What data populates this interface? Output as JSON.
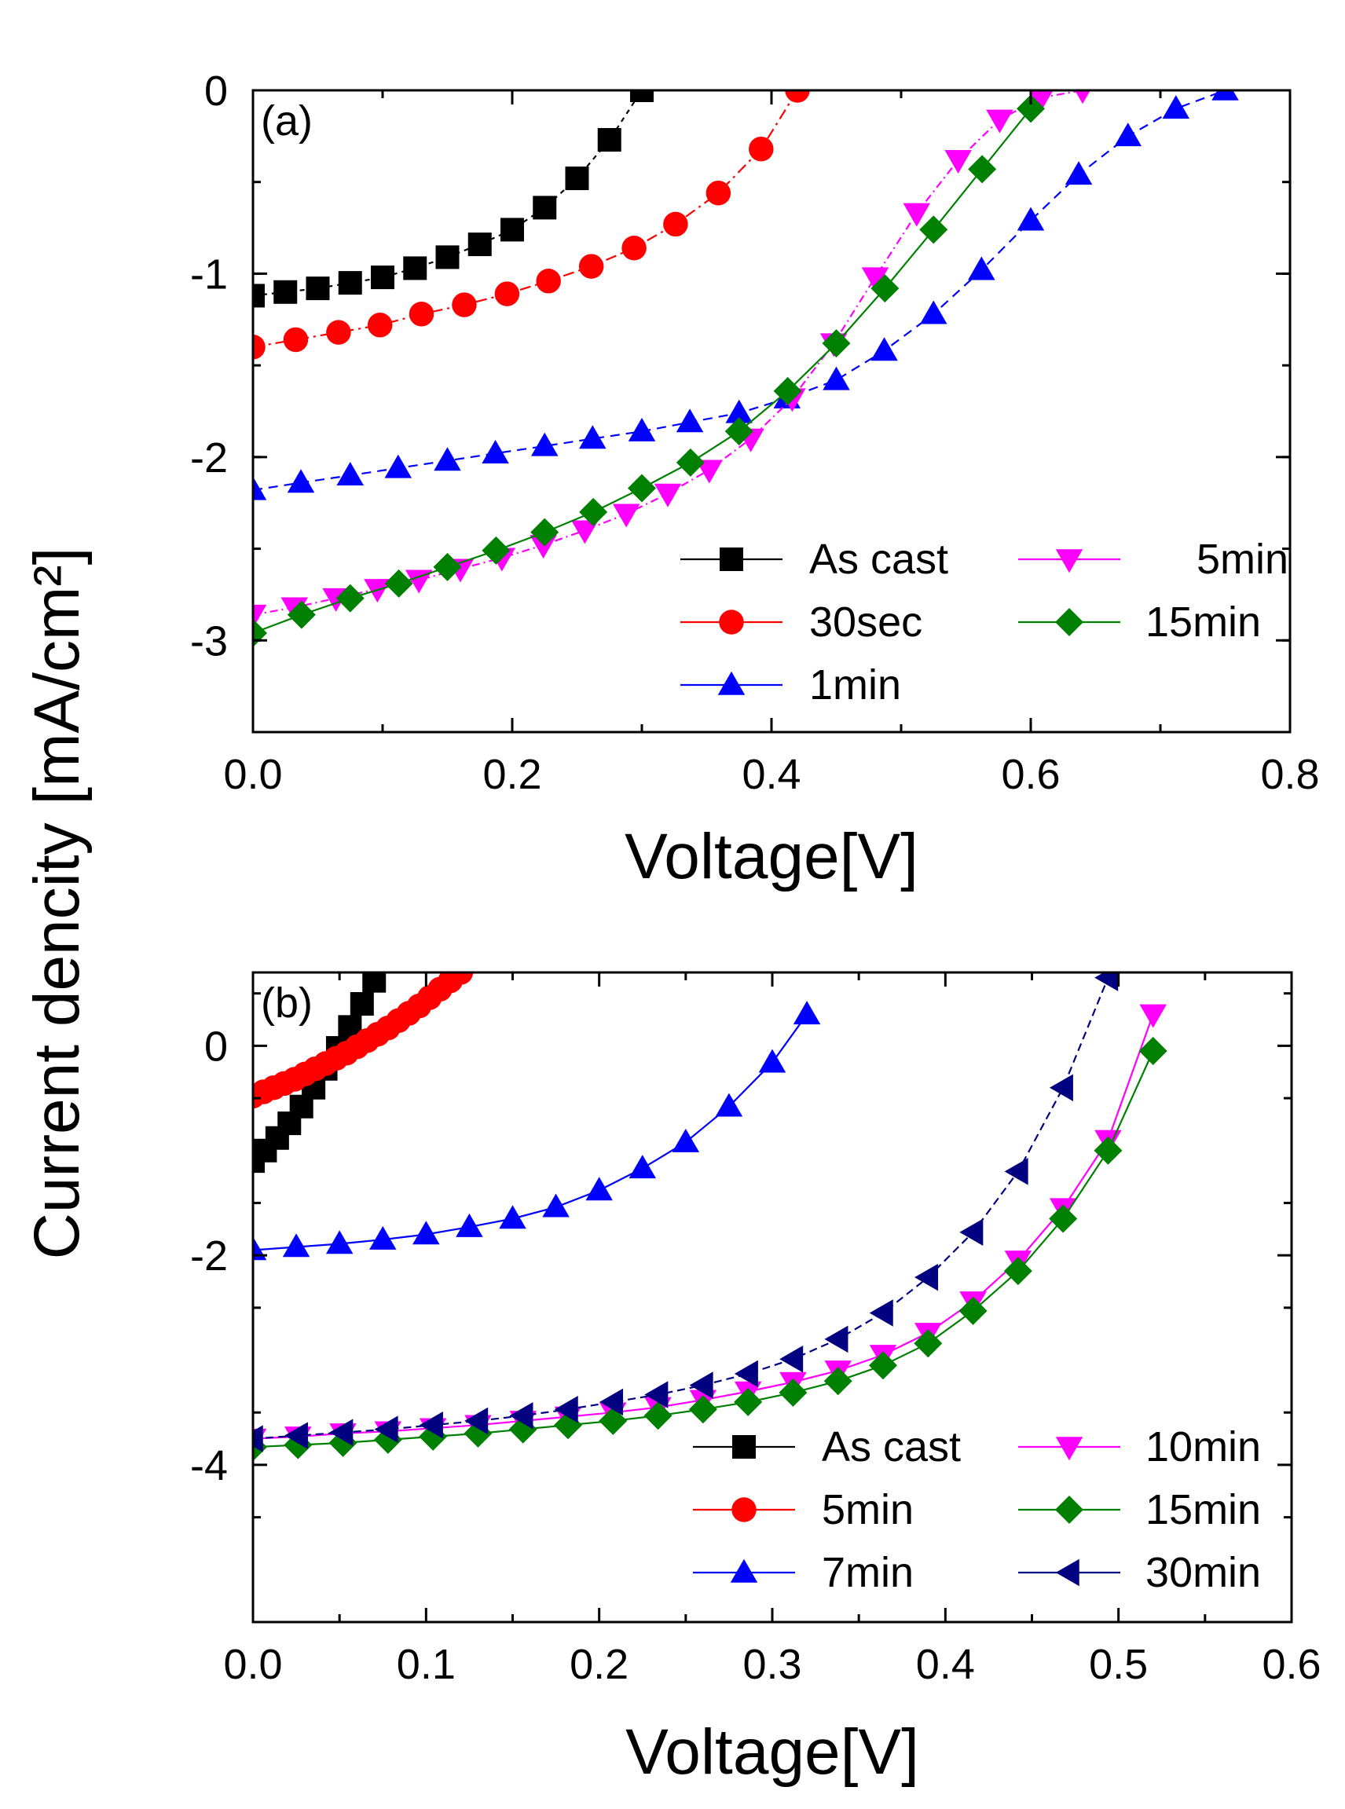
{
  "ylabel_shared": "Current dencity [mA/cm²]",
  "chart_data": [
    {
      "type": "line",
      "panel_label": "(a)",
      "xlabel": "Voltage[V]",
      "ylabel": "Current dencity [mA/cm²]",
      "xlim": [
        0.0,
        0.8
      ],
      "ylim": [
        -3.5,
        0
      ],
      "xticks": [
        "0.0",
        "0.2",
        "0.4",
        "0.6",
        "0.8"
      ],
      "yticks": [
        "0",
        "-1",
        "-2",
        "-3"
      ],
      "legend_position": "bottom-right",
      "series": [
        {
          "name": "As cast",
          "color": "#000000",
          "marker": "square",
          "dash": "6,6",
          "x": [
            0.0,
            0.025,
            0.05,
            0.075,
            0.1,
            0.125,
            0.15,
            0.175,
            0.2,
            0.225,
            0.25,
            0.275,
            0.3
          ],
          "y": [
            -1.12,
            -1.1,
            -1.08,
            -1.05,
            -1.02,
            -0.97,
            -0.91,
            -0.84,
            -0.76,
            -0.64,
            -0.48,
            -0.27,
            0.0
          ]
        },
        {
          "name": "30sec",
          "color": "#ff0000",
          "marker": "circle",
          "dash": "14,6,3,6",
          "x": [
            0.0,
            0.033,
            0.066,
            0.098,
            0.13,
            0.163,
            0.196,
            0.228,
            0.261,
            0.294,
            0.326,
            0.359,
            0.392,
            0.42
          ],
          "y": [
            -1.4,
            -1.36,
            -1.32,
            -1.28,
            -1.22,
            -1.17,
            -1.11,
            -1.04,
            -0.96,
            -0.86,
            -0.73,
            -0.56,
            -0.32,
            0.0
          ]
        },
        {
          "name": "1min",
          "color": "#0000ff",
          "marker": "triangle-up",
          "dash": "12,8",
          "x": [
            0.0,
            0.037,
            0.075,
            0.112,
            0.15,
            0.187,
            0.225,
            0.262,
            0.3,
            0.337,
            0.375,
            0.412,
            0.45,
            0.487,
            0.525,
            0.562,
            0.6,
            0.637,
            0.675,
            0.712,
            0.75
          ],
          "y": [
            -2.18,
            -2.14,
            -2.1,
            -2.06,
            -2.02,
            -1.98,
            -1.94,
            -1.9,
            -1.86,
            -1.81,
            -1.76,
            -1.68,
            -1.58,
            -1.42,
            -1.22,
            -0.98,
            -0.71,
            -0.46,
            -0.25,
            -0.1,
            0.0
          ]
        },
        {
          "name": "5min",
          "color": "#ff00ff",
          "marker": "triangle-down",
          "dash": "10,5,2,5",
          "x": [
            0.0,
            0.032,
            0.064,
            0.096,
            0.128,
            0.16,
            0.192,
            0.224,
            0.256,
            0.288,
            0.32,
            0.352,
            0.384,
            0.416,
            0.448,
            0.48,
            0.512,
            0.544,
            0.576,
            0.608,
            0.64
          ],
          "y": [
            -2.86,
            -2.82,
            -2.77,
            -2.72,
            -2.67,
            -2.61,
            -2.55,
            -2.48,
            -2.4,
            -2.31,
            -2.2,
            -2.07,
            -1.9,
            -1.68,
            -1.38,
            -1.02,
            -0.67,
            -0.38,
            -0.16,
            -0.04,
            0.0
          ]
        },
        {
          "name": "15min",
          "color": "#008000",
          "marker": "diamond",
          "dash": "",
          "x": [
            0.0,
            0.0375,
            0.075,
            0.1125,
            0.15,
            0.1875,
            0.225,
            0.2625,
            0.3,
            0.3375,
            0.375,
            0.4125,
            0.45,
            0.4875,
            0.525,
            0.5625,
            0.6
          ],
          "y": [
            -2.96,
            -2.86,
            -2.77,
            -2.69,
            -2.6,
            -2.51,
            -2.41,
            -2.3,
            -2.17,
            -2.03,
            -1.86,
            -1.64,
            -1.38,
            -1.08,
            -0.76,
            -0.43,
            -0.1
          ]
        }
      ]
    },
    {
      "type": "line",
      "panel_label": "(b)",
      "xlabel": "Voltage[V]",
      "ylabel": "Current dencity [mA/cm²]",
      "xlim": [
        0.0,
        0.6
      ],
      "ylim": [
        -5.5,
        0.7
      ],
      "xticks": [
        "0.0",
        "0.1",
        "0.2",
        "0.3",
        "0.4",
        "0.5",
        "0.6"
      ],
      "yticks": [
        "0",
        "-2",
        "-4"
      ],
      "legend_position": "bottom-right",
      "series": [
        {
          "name": "As cast",
          "color": "#000000",
          "marker": "square",
          "dash": "",
          "x": [
            0.0,
            0.007,
            0.014,
            0.021,
            0.028,
            0.035,
            0.042,
            0.049,
            0.056,
            0.063,
            0.07
          ],
          "y": [
            -1.1,
            -1.0,
            -0.88,
            -0.74,
            -0.58,
            -0.4,
            -0.22,
            -0.02,
            0.18,
            0.4,
            0.62
          ]
        },
        {
          "name": "5min",
          "color": "#ff0000",
          "marker": "circle",
          "dash": "",
          "x": [
            0.0,
            0.006,
            0.012,
            0.018,
            0.024,
            0.03,
            0.036,
            0.042,
            0.048,
            0.054,
            0.06,
            0.066,
            0.072,
            0.078,
            0.084,
            0.09,
            0.096,
            0.102,
            0.108,
            0.114,
            0.12
          ],
          "y": [
            -0.48,
            -0.44,
            -0.4,
            -0.36,
            -0.32,
            -0.27,
            -0.22,
            -0.17,
            -0.12,
            -0.07,
            -0.01,
            0.05,
            0.11,
            0.17,
            0.24,
            0.31,
            0.38,
            0.46,
            0.54,
            0.62,
            0.7
          ]
        },
        {
          "name": "7min",
          "color": "#0000ff",
          "marker": "triangle-up",
          "dash": "",
          "x": [
            0.0,
            0.025,
            0.05,
            0.075,
            0.1,
            0.125,
            0.15,
            0.175,
            0.2,
            0.225,
            0.25,
            0.275,
            0.3,
            0.32
          ],
          "y": [
            -1.95,
            -1.92,
            -1.89,
            -1.85,
            -1.8,
            -1.73,
            -1.65,
            -1.54,
            -1.38,
            -1.17,
            -0.92,
            -0.58,
            -0.16,
            0.3
          ]
        },
        {
          "name": "10min",
          "color": "#ff00ff",
          "marker": "triangle-down",
          "dash": "",
          "x": [
            0.0,
            0.026,
            0.052,
            0.078,
            0.104,
            0.13,
            0.156,
            0.182,
            0.208,
            0.234,
            0.26,
            0.286,
            0.312,
            0.338,
            0.364,
            0.39,
            0.416,
            0.442,
            0.468,
            0.494,
            0.52
          ],
          "y": [
            -3.75,
            -3.73,
            -3.7,
            -3.68,
            -3.65,
            -3.62,
            -3.58,
            -3.54,
            -3.5,
            -3.45,
            -3.38,
            -3.3,
            -3.21,
            -3.1,
            -2.95,
            -2.74,
            -2.44,
            -2.05,
            -1.55,
            -0.9,
            0.3
          ]
        },
        {
          "name": "15min",
          "color": "#008000",
          "marker": "diamond",
          "dash": "",
          "x": [
            0.0,
            0.026,
            0.052,
            0.078,
            0.104,
            0.13,
            0.156,
            0.182,
            0.208,
            0.234,
            0.26,
            0.286,
            0.312,
            0.338,
            0.364,
            0.39,
            0.416,
            0.442,
            0.468,
            0.494,
            0.52
          ],
          "y": [
            -3.83,
            -3.81,
            -3.79,
            -3.76,
            -3.73,
            -3.7,
            -3.66,
            -3.62,
            -3.58,
            -3.53,
            -3.47,
            -3.4,
            -3.31,
            -3.2,
            -3.05,
            -2.84,
            -2.53,
            -2.15,
            -1.65,
            -1.0,
            -0.05
          ]
        },
        {
          "name": "30min",
          "color": "#000080",
          "marker": "triangle-left",
          "dash": "10,6",
          "x": [
            0.0,
            0.026,
            0.052,
            0.078,
            0.104,
            0.13,
            0.156,
            0.182,
            0.208,
            0.234,
            0.26,
            0.286,
            0.312,
            0.338,
            0.364,
            0.39,
            0.416,
            0.442,
            0.468,
            0.494
          ],
          "y": [
            -3.75,
            -3.72,
            -3.69,
            -3.66,
            -3.62,
            -3.58,
            -3.53,
            -3.47,
            -3.4,
            -3.33,
            -3.24,
            -3.13,
            -2.99,
            -2.8,
            -2.55,
            -2.21,
            -1.78,
            -1.2,
            -0.4,
            0.65
          ]
        }
      ]
    }
  ]
}
